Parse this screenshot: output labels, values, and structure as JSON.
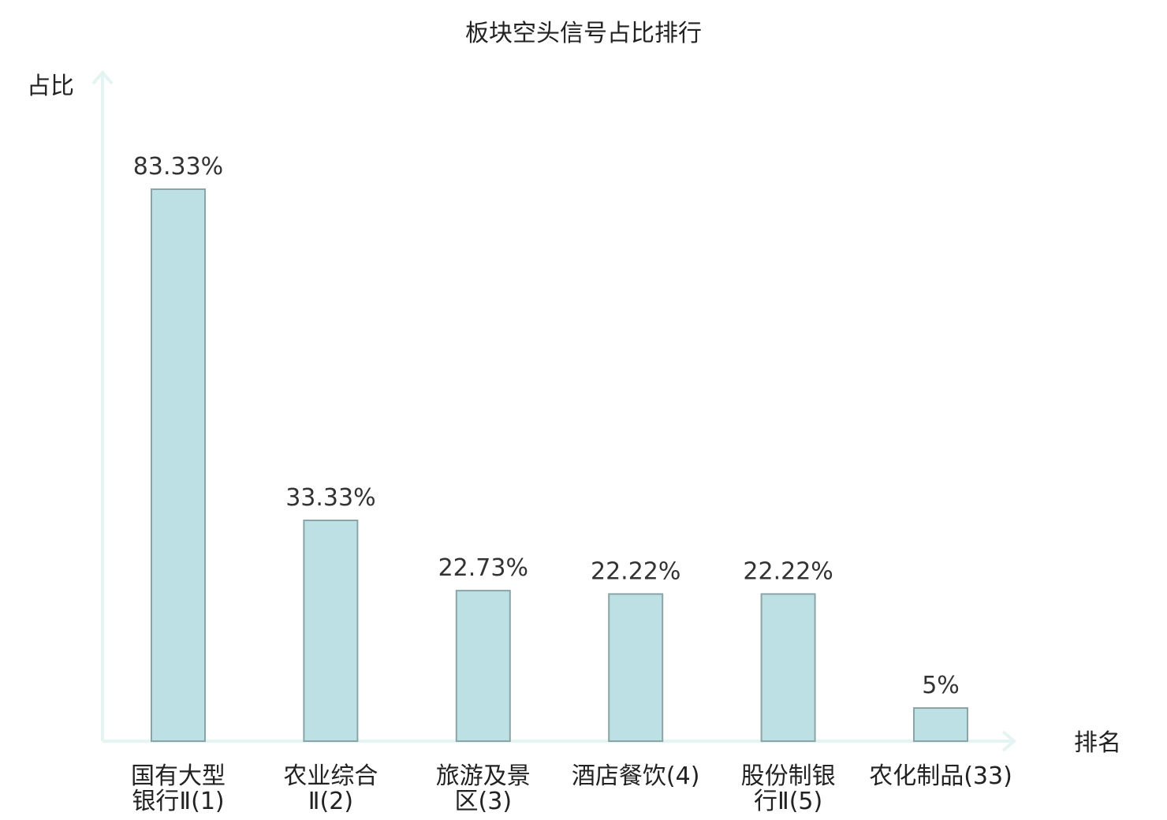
{
  "chart_data": {
    "type": "bar",
    "title": "板块空头信号占比排行",
    "xlabel": "排名",
    "ylabel": "占比",
    "categories": [
      [
        "国有大型",
        "银行Ⅱ(1)"
      ],
      [
        "农业综合",
        "Ⅱ(2)"
      ],
      [
        "旅游及景",
        "区(3)"
      ],
      [
        "酒店餐饮(4)"
      ],
      [
        "股份制银",
        "行Ⅱ(5)"
      ],
      [
        "农化制品(33)"
      ]
    ],
    "values": [
      83.33,
      33.33,
      22.73,
      22.22,
      22.22,
      5
    ],
    "value_labels": [
      "83.33%",
      "33.33%",
      "22.73%",
      "22.22%",
      "22.22%",
      "5%"
    ],
    "highlight_index": 5,
    "ylim": [
      0,
      100
    ],
    "grid": false,
    "colors": {
      "bar_fill": "#bce0e3",
      "bar_stroke": "#8aa5a8",
      "axis": "#e4f4f2",
      "highlight_label": "#e00000",
      "text": "#222222"
    }
  }
}
